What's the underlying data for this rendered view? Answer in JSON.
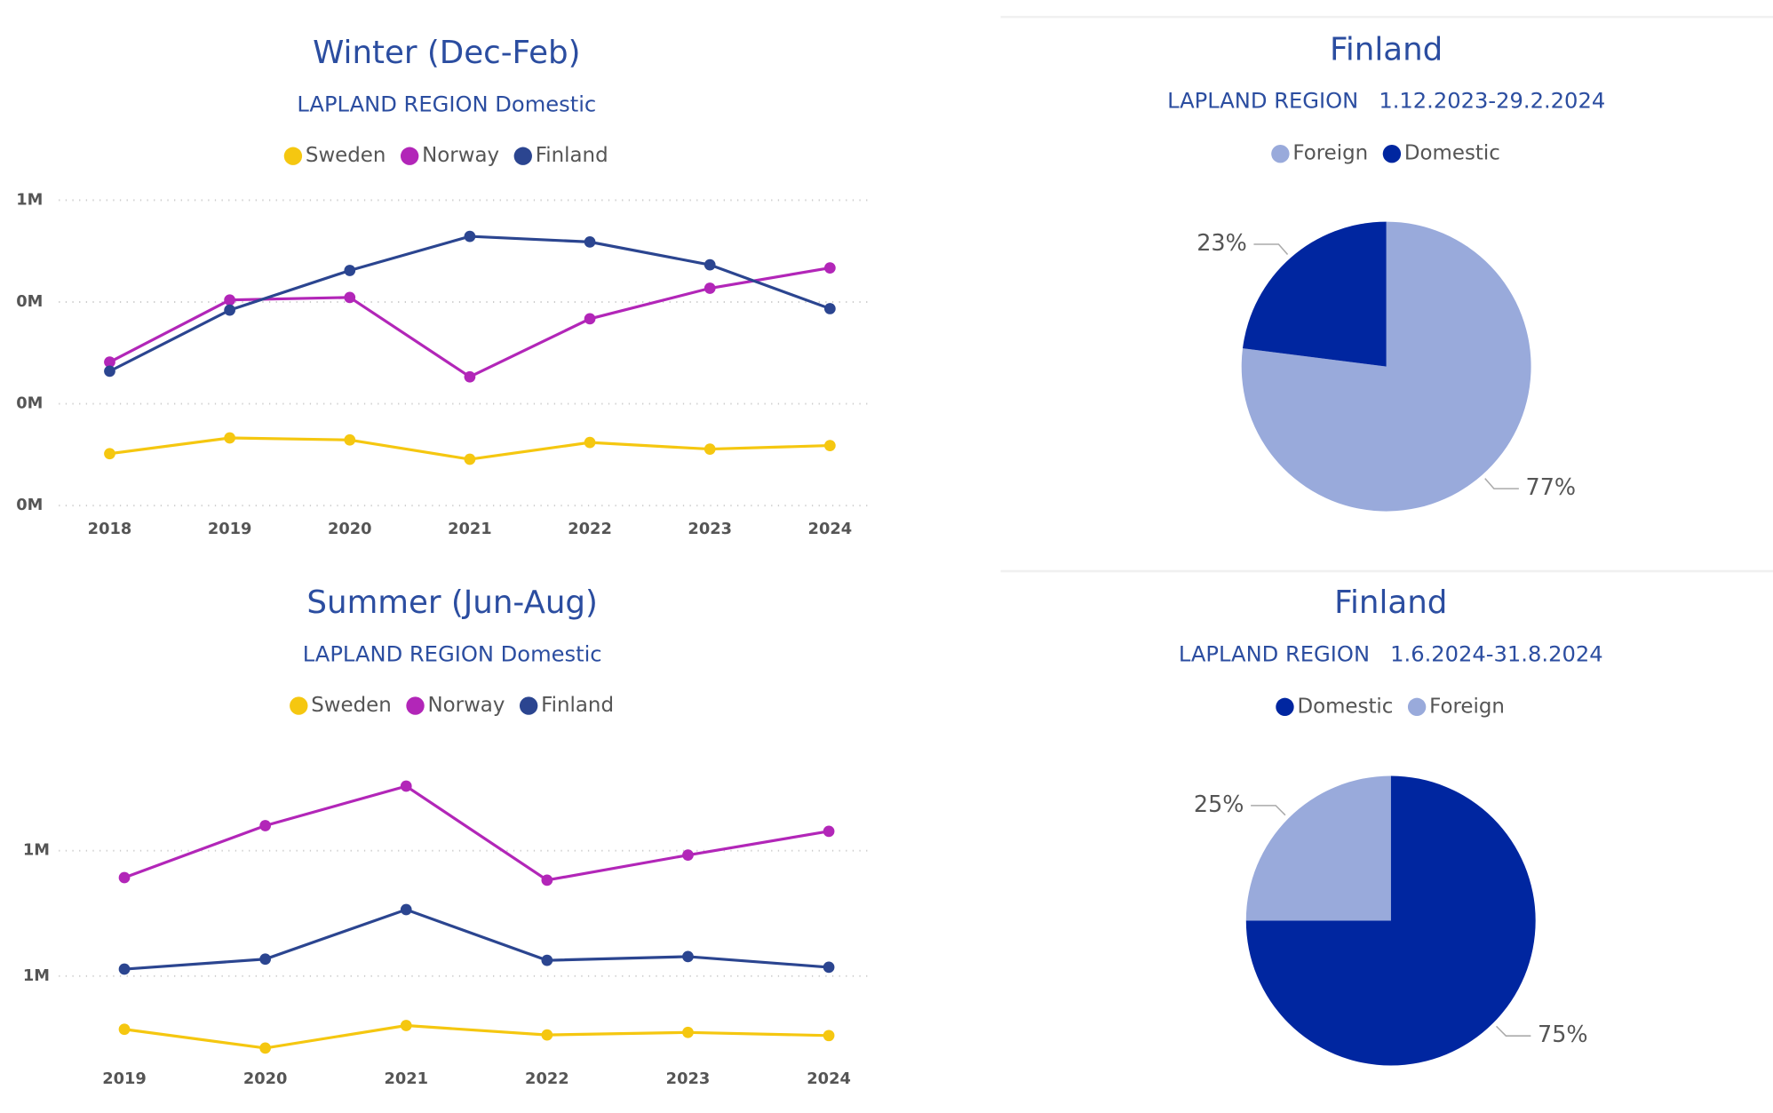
{
  "chart_data": [
    {
      "type": "line",
      "title": "Winter (Dec-Feb)",
      "subtitle": "LAPLAND REGION Domestic",
      "categories": [
        "2018",
        "2019",
        "2020",
        "2021",
        "2022",
        "2023",
        "2024"
      ],
      "series": [
        {
          "name": "Sweden",
          "color": "#f5c710",
          "values": [
            0.102,
            0.133,
            0.129,
            0.091,
            0.124,
            0.111,
            0.118
          ]
        },
        {
          "name": "Norway",
          "color": "#b226b8",
          "values": [
            0.282,
            0.404,
            0.409,
            0.253,
            0.367,
            0.427,
            0.467
          ]
        },
        {
          "name": "Finland",
          "color": "#2b4590",
          "values": [
            0.264,
            0.384,
            0.462,
            0.529,
            0.518,
            0.473,
            0.387
          ]
        }
      ],
      "ylim": [
        0,
        0.6
      ],
      "yticks": [
        {
          "value": 0,
          "label": "0M"
        },
        {
          "value": 0.2,
          "label": "0M"
        },
        {
          "value": 0.4,
          "label": "0M"
        },
        {
          "value": 0.6,
          "label": "1M"
        }
      ],
      "grid": true
    },
    {
      "type": "pie",
      "title": "Finland",
      "subtitle": "LAPLAND REGION   1.12.2023-29.2.2024",
      "categories": [
        "Foreign",
        "Domestic"
      ],
      "values": [
        77,
        23
      ],
      "value_labels": [
        "77%",
        "23%"
      ],
      "colors": [
        "#99aadb",
        "#0026a0"
      ]
    },
    {
      "type": "line",
      "title": "Summer (Jun-Aug)",
      "subtitle": "LAPLAND REGION Domestic",
      "categories": [
        "2019",
        "2020",
        "2021",
        "2022",
        "2023",
        "2024"
      ],
      "series": [
        {
          "name": "Sweden",
          "color": "#f5c710",
          "values": [
            0.715,
            0.685,
            0.721,
            0.706,
            0.71,
            0.705
          ]
        },
        {
          "name": "Norway",
          "color": "#b226b8",
          "values": [
            0.957,
            1.04,
            1.103,
            0.953,
            0.993,
            1.031
          ]
        },
        {
          "name": "Finland",
          "color": "#2b4590",
          "values": [
            0.811,
            0.827,
            0.906,
            0.825,
            0.831,
            0.814
          ]
        }
      ],
      "ylim": [
        0.65,
        1.15
      ],
      "yticks": [
        {
          "value": 0.8,
          "label": "1M"
        },
        {
          "value": 1.0,
          "label": "1M"
        }
      ],
      "grid": true
    },
    {
      "type": "pie",
      "title": "Finland",
      "subtitle": "LAPLAND REGION   1.6.2024-31.8.2024",
      "categories": [
        "Domestic",
        "Foreign"
      ],
      "values": [
        75,
        25
      ],
      "value_labels": [
        "75%",
        "25%"
      ],
      "colors": [
        "#0026a0",
        "#99aadb"
      ]
    }
  ]
}
